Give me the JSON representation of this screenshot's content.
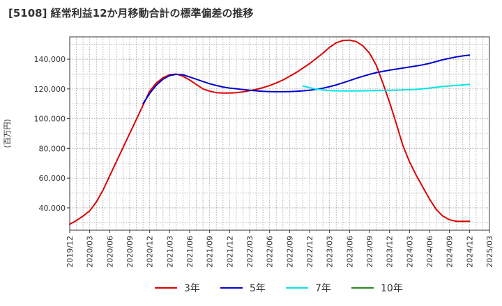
{
  "chart_data": {
    "type": "line",
    "title": "[5108]  経常利益12か月移動合計の標準偏差の推移",
    "ylabel": "(百万円)",
    "xlabel": "",
    "ylim": [
      25000,
      155000
    ],
    "y_ticks": [
      40000,
      60000,
      80000,
      100000,
      120000,
      140000
    ],
    "y_tick_labels": [
      "40,000",
      "60,000",
      "80,000",
      "100,000",
      "120,000",
      "140,000"
    ],
    "x_tick_labels": [
      "2019/12",
      "2020/03",
      "2020/06",
      "2020/09",
      "2020/12",
      "2021/03",
      "2021/06",
      "2021/09",
      "2021/12",
      "2022/03",
      "2022/06",
      "2022/09",
      "2022/12",
      "2023/03",
      "2023/06",
      "2023/09",
      "2023/12",
      "2024/03",
      "2024/06",
      "2024/09",
      "2024/12",
      "2025/03"
    ],
    "grid": true,
    "legend_position": "bottom",
    "series": [
      {
        "name": "3年",
        "color": "#dd0000",
        "x": [
          "2019/12",
          "2020/01",
          "2020/02",
          "2020/03",
          "2020/04",
          "2020/05",
          "2020/06",
          "2020/07",
          "2020/08",
          "2020/09",
          "2020/10",
          "2020/11",
          "2020/12",
          "2021/01",
          "2021/02",
          "2021/03",
          "2021/04",
          "2021/05",
          "2021/06",
          "2021/07",
          "2021/08",
          "2021/09",
          "2021/10",
          "2021/11",
          "2021/12",
          "2022/01",
          "2022/02",
          "2022/03",
          "2022/04",
          "2022/05",
          "2022/06",
          "2022/07",
          "2022/08",
          "2022/09",
          "2022/10",
          "2022/11",
          "2022/12",
          "2023/01",
          "2023/02",
          "2023/03",
          "2023/04",
          "2023/05",
          "2023/06",
          "2023/07",
          "2023/08",
          "2023/09",
          "2023/10",
          "2023/11",
          "2023/12",
          "2024/01",
          "2024/02",
          "2024/03",
          "2024/04",
          "2024/05",
          "2024/06",
          "2024/07",
          "2024/08",
          "2024/09",
          "2024/10",
          "2024/11",
          "2024/12"
        ],
        "values": [
          29000,
          31500,
          34500,
          38000,
          44000,
          52000,
          61500,
          71000,
          80500,
          90000,
          99500,
          109000,
          118500,
          124000,
          127500,
          129500,
          130000,
          128500,
          126000,
          123000,
          120000,
          118500,
          117500,
          117200,
          117200,
          117500,
          118000,
          118800,
          119700,
          120800,
          122200,
          124000,
          126000,
          128500,
          131000,
          134000,
          137000,
          140500,
          144000,
          148000,
          151000,
          152500,
          152800,
          151800,
          149000,
          144000,
          136000,
          124000,
          111000,
          97000,
          82000,
          71000,
          62000,
          54000,
          46000,
          39000,
          34500,
          32000,
          31000,
          31000,
          31000
        ]
      },
      {
        "name": "5年",
        "color": "#0000cc",
        "x": [
          "2020/11",
          "2020/12",
          "2021/01",
          "2021/02",
          "2021/03",
          "2021/04",
          "2021/05",
          "2021/06",
          "2021/07",
          "2021/08",
          "2021/09",
          "2021/10",
          "2021/11",
          "2021/12",
          "2022/01",
          "2022/02",
          "2022/03",
          "2022/04",
          "2022/05",
          "2022/06",
          "2022/07",
          "2022/08",
          "2022/09",
          "2022/10",
          "2022/11",
          "2022/12",
          "2023/01",
          "2023/02",
          "2023/03",
          "2023/04",
          "2023/05",
          "2023/06",
          "2023/07",
          "2023/08",
          "2023/09",
          "2023/10",
          "2023/11",
          "2023/12",
          "2024/01",
          "2024/02",
          "2024/03",
          "2024/04",
          "2024/05",
          "2024/06",
          "2024/07",
          "2024/08",
          "2024/09",
          "2024/10",
          "2024/11",
          "2024/12"
        ],
        "values": [
          110000,
          117000,
          122500,
          126500,
          129000,
          129800,
          129500,
          128000,
          126500,
          125000,
          123500,
          122300,
          121300,
          120600,
          120100,
          119600,
          119100,
          118700,
          118400,
          118200,
          118100,
          118100,
          118200,
          118400,
          118700,
          119100,
          119700,
          120500,
          121500,
          122700,
          124100,
          125600,
          127100,
          128500,
          129800,
          130900,
          131800,
          132600,
          133300,
          134000,
          134700,
          135400,
          136200,
          137200,
          138400,
          139600,
          140600,
          141500,
          142200,
          142700
        ]
      },
      {
        "name": "7年",
        "color": "#00e5e5",
        "x": [
          "2022/11",
          "2022/12",
          "2023/01",
          "2023/02",
          "2023/03",
          "2023/04",
          "2023/05",
          "2023/06",
          "2023/07",
          "2023/08",
          "2023/09",
          "2023/10",
          "2023/11",
          "2023/12",
          "2024/01",
          "2024/02",
          "2024/03",
          "2024/04",
          "2024/05",
          "2024/06",
          "2024/07",
          "2024/08",
          "2024/09",
          "2024/10",
          "2024/11",
          "2024/12"
        ],
        "values": [
          122000,
          120800,
          119900,
          119300,
          118900,
          118700,
          118600,
          118600,
          118600,
          118700,
          118800,
          118900,
          119000,
          119100,
          119200,
          119300,
          119500,
          119700,
          120100,
          120600,
          121100,
          121600,
          122000,
          122400,
          122700,
          123000
        ]
      },
      {
        "name": "10年",
        "color": "#228b22",
        "x": [],
        "values": []
      }
    ]
  }
}
